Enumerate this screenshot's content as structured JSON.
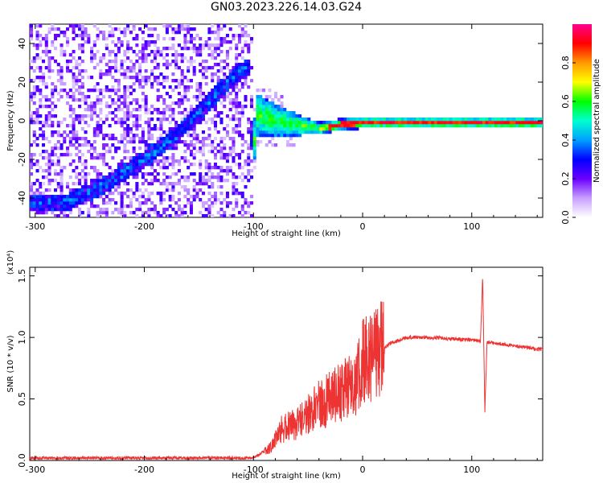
{
  "title": "GN03.2023.226.14.03.G24",
  "chart_data": [
    {
      "type": "heatmap",
      "xlabel": "Height of straight line (km)",
      "ylabel": "Frequency (Hz)",
      "xlim": [
        -305,
        165
      ],
      "ylim": [
        -50,
        50
      ],
      "xticks": [
        -300,
        -200,
        -100,
        0,
        100
      ],
      "yticks": [
        -40,
        -20,
        0,
        20,
        40
      ],
      "colorbar": {
        "label": "Normalized spectral amplitude",
        "range": [
          0,
          1
        ],
        "ticks": [
          "0.0",
          "0.2",
          "0.4",
          "0.6",
          "0.8"
        ],
        "colors": [
          "#ffffff",
          "#c8a0ff",
          "#6a00ff",
          "#0000ff",
          "#00a0ff",
          "#00ffd0",
          "#00ff00",
          "#ffff00",
          "#ff9900",
          "#ff0000",
          "#ff0090"
        ]
      },
      "ridge": [
        {
          "x": -300,
          "y": -42
        },
        {
          "x": -270,
          "y": -42
        },
        {
          "x": -250,
          "y": -37
        },
        {
          "x": -230,
          "y": -31
        },
        {
          "x": -200,
          "y": -20
        },
        {
          "x": -170,
          "y": -7
        },
        {
          "x": -140,
          "y": 10
        },
        {
          "x": -120,
          "y": 22
        },
        {
          "x": -104,
          "y": 28
        },
        {
          "x": -101,
          "y": -22
        },
        {
          "x": -97,
          "y": 3
        },
        {
          "x": -70,
          "y": -1
        },
        {
          "x": -40,
          "y": -4
        },
        {
          "x": -20,
          "y": -2
        },
        {
          "x": 0,
          "y": -1
        },
        {
          "x": 50,
          "y": -1
        },
        {
          "x": 100,
          "y": -1
        },
        {
          "x": 165,
          "y": -1
        }
      ]
    },
    {
      "type": "line",
      "xlabel": "Height of straight line (km)",
      "ylabel": "SNR (10 * v/v)",
      "yscale_label": "(x10⁴)",
      "xlim": [
        -305,
        165
      ],
      "ylim": [
        0,
        1.57
      ],
      "xticks": [
        -300,
        -200,
        -100,
        0,
        100
      ],
      "yticks": [
        0.0,
        0.5,
        1.0,
        1.5
      ],
      "series": [
        {
          "color": "#ee3333",
          "x": [
            -305,
            -200,
            -100,
            -85,
            -75,
            -60,
            -40,
            -20,
            -5,
            0,
            10,
            25,
            40,
            60,
            80,
            100,
            108,
            110,
            112,
            114,
            118,
            140,
            165
          ],
          "y": [
            0.02,
            0.02,
            0.02,
            0.1,
            0.25,
            0.3,
            0.45,
            0.55,
            0.65,
            0.8,
            0.85,
            0.95,
            1.0,
            1.0,
            0.99,
            0.98,
            0.97,
            1.5,
            0.4,
            0.96,
            0.96,
            0.93,
            0.9
          ]
        }
      ]
    }
  ]
}
